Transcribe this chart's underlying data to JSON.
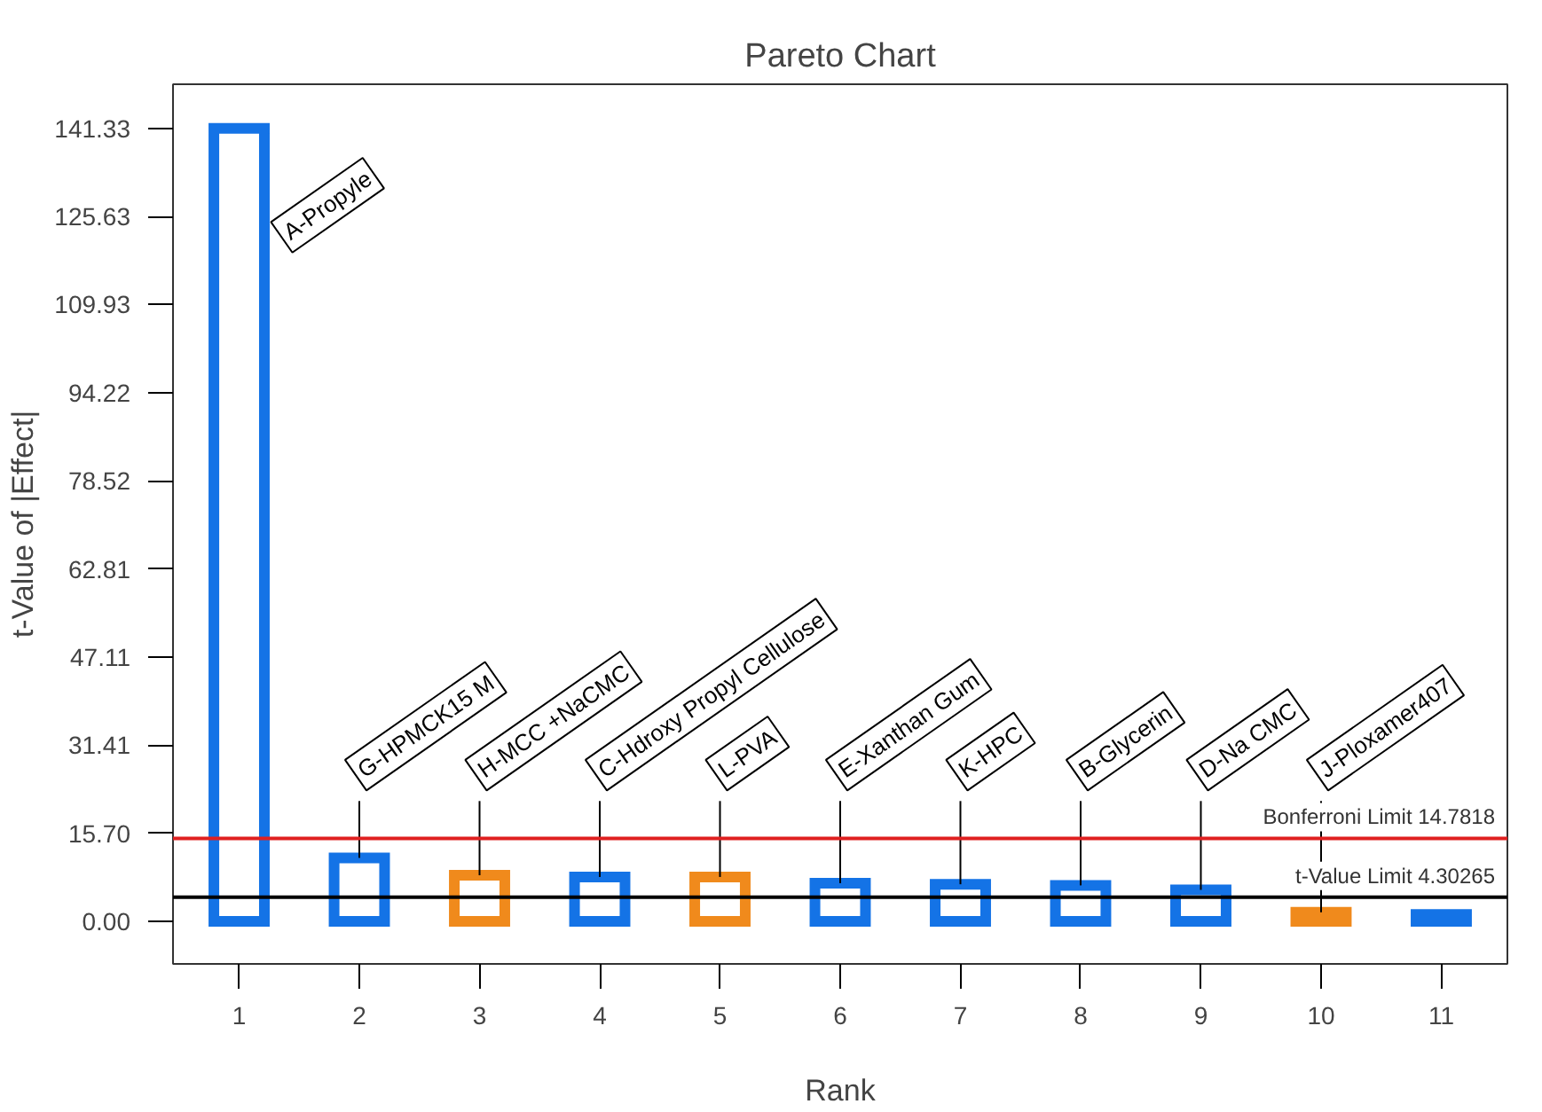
{
  "chart_data": {
    "type": "bar",
    "title": "Pareto Chart",
    "xlabel": "Rank",
    "ylabel": "t-Value of |Effect|",
    "x": [
      1,
      2,
      3,
      4,
      5,
      6,
      7,
      8,
      9,
      10,
      11
    ],
    "values": [
      141.33,
      11.3,
      8.2,
      7.9,
      7.9,
      6.8,
      6.6,
      6.4,
      5.6,
      1.6,
      1.2
    ],
    "colors": [
      "#1473e6",
      "#1473e6",
      "#f08a1c",
      "#1473e6",
      "#f08a1c",
      "#1473e6",
      "#1473e6",
      "#1473e6",
      "#1473e6",
      "#f08a1c",
      "#1473e6"
    ],
    "xlim": [
      0.45,
      11.55
    ],
    "xticks": [
      1,
      2,
      3,
      4,
      5,
      6,
      7,
      8,
      9,
      10,
      11
    ],
    "ylim": [
      -7.6,
      149.2
    ],
    "yticks": [
      {
        "value": 0,
        "label": "0.00"
      },
      {
        "value": 15.7,
        "label": "15.70"
      },
      31.41,
      47.11,
      62.81,
      78.52,
      94.22,
      109.93,
      125.63,
      141.33
    ],
    "ref_lines": [
      {
        "axis": "y",
        "value": 14.7818,
        "label": "Bonferroni Limit 14.7818",
        "color": "#e02020",
        "line_style": "solid"
      },
      {
        "axis": "y",
        "value": 4.30265,
        "label": "t-Value Limit 4.30265",
        "color": "#000000",
        "line_style": "solid"
      }
    ],
    "annotations": [
      {
        "text": "A-Propyle",
        "x": 1,
        "y": 141.33
      },
      {
        "text": "G-HPMCK15 M",
        "x": 2,
        "y": 11.3
      },
      {
        "text": "H-MCC +NaCMC",
        "x": 3,
        "y": 8.2
      },
      {
        "text": "C-Hdroxy Propyl Cellulose",
        "x": 4,
        "y": 7.9
      },
      {
        "text": "L-PVA",
        "x": 5,
        "y": 7.9
      },
      {
        "text": "E-Xanthan Gum",
        "x": 6,
        "y": 6.8
      },
      {
        "text": "K-HPC",
        "x": 7,
        "y": 6.6
      },
      {
        "text": "B-Glycerin",
        "x": 8,
        "y": 6.4
      },
      {
        "text": "D-Na CMC",
        "x": 9,
        "y": 5.6
      },
      {
        "text": "J-Ploxamer407",
        "x": 10,
        "y": 1.6
      }
    ],
    "grid": false
  }
}
